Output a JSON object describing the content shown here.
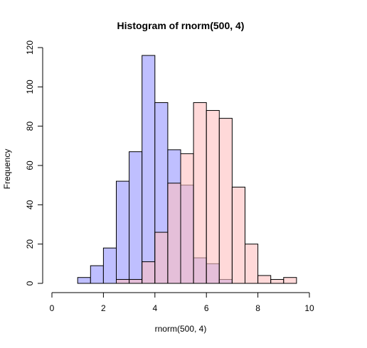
{
  "chart_data": {
    "type": "bar",
    "title": "Histogram of rnorm(500, 4)",
    "xlabel": "rnorm(500, 4)",
    "ylabel": "Frequency",
    "xlim": [
      0,
      10
    ],
    "ylim": [
      0,
      120
    ],
    "xticks": [
      "0",
      "2",
      "4",
      "6",
      "8",
      "10"
    ],
    "yticks": [
      "0",
      "20",
      "40",
      "60",
      "80",
      "100",
      "120"
    ],
    "bin_width": 0.5,
    "grid": false,
    "series": [
      {
        "color": "#bfbfff",
        "bins": [
          {
            "x0": 1.0,
            "count": 3
          },
          {
            "x0": 1.5,
            "count": 9
          },
          {
            "x0": 2.0,
            "count": 18
          },
          {
            "x0": 2.5,
            "count": 52
          },
          {
            "x0": 3.0,
            "count": 67
          },
          {
            "x0": 3.5,
            "count": 116
          },
          {
            "x0": 4.0,
            "count": 92
          },
          {
            "x0": 4.5,
            "count": 68
          },
          {
            "x0": 5.0,
            "count": 50
          },
          {
            "x0": 5.5,
            "count": 13
          },
          {
            "x0": 6.0,
            "count": 10
          },
          {
            "x0": 6.5,
            "count": 2
          }
        ]
      },
      {
        "color": "#ffbfbf",
        "bins": [
          {
            "x0": 2.5,
            "count": 2
          },
          {
            "x0": 3.0,
            "count": 2
          },
          {
            "x0": 3.5,
            "count": 11
          },
          {
            "x0": 4.0,
            "count": 26
          },
          {
            "x0": 4.5,
            "count": 51
          },
          {
            "x0": 5.0,
            "count": 66
          },
          {
            "x0": 5.5,
            "count": 92
          },
          {
            "x0": 6.0,
            "count": 88
          },
          {
            "x0": 6.5,
            "count": 84
          },
          {
            "x0": 7.0,
            "count": 49
          },
          {
            "x0": 7.5,
            "count": 20
          },
          {
            "x0": 8.0,
            "count": 4
          },
          {
            "x0": 8.5,
            "count": 2
          },
          {
            "x0": 9.0,
            "count": 3
          }
        ]
      }
    ]
  }
}
